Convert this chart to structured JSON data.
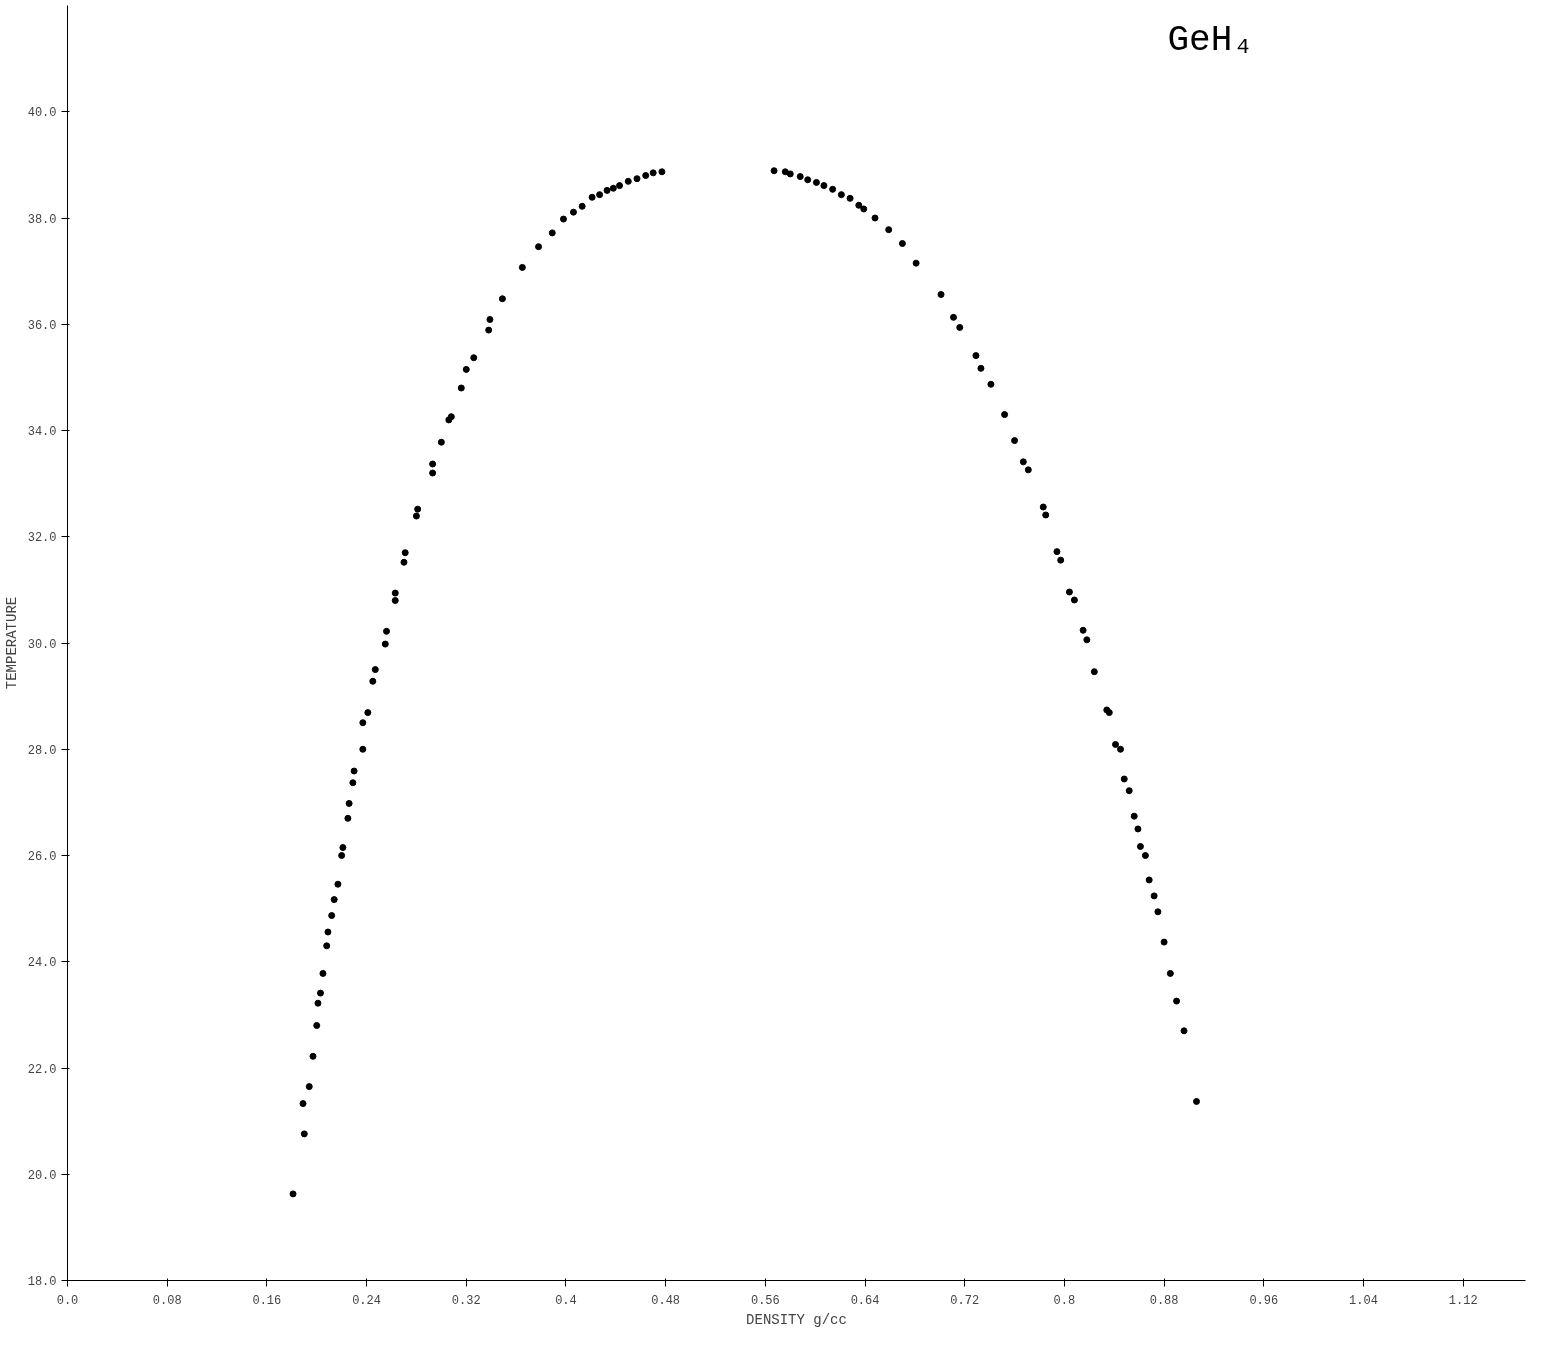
{
  "chart_data": {
    "type": "scatter",
    "title": "GeH₄",
    "xlabel": "DENSITY g/cc",
    "ylabel": "TEMPERATURE",
    "xlim": [
      0,
      1.17
    ],
    "ylim": [
      18,
      42
    ],
    "xticks": [
      {
        "value": 0,
        "label": "0.0"
      },
      {
        "value": 0.08,
        "label": "0.08"
      },
      {
        "value": 0.16,
        "label": "0.16"
      },
      {
        "value": 0.24,
        "label": "0.24"
      },
      {
        "value": 0.32,
        "label": "0.32"
      },
      {
        "value": 0.4,
        "label": "0.4"
      },
      {
        "value": 0.48,
        "label": "0.48"
      },
      {
        "value": 0.56,
        "label": "0.56"
      },
      {
        "value": 0.64,
        "label": "0.64"
      },
      {
        "value": 0.72,
        "label": "0.72"
      },
      {
        "value": 0.8,
        "label": "0.8"
      },
      {
        "value": 0.88,
        "label": "0.88"
      },
      {
        "value": 0.96,
        "label": "0.96"
      },
      {
        "value": 1.04,
        "label": "1.04"
      },
      {
        "value": 1.12,
        "label": "1.12"
      }
    ],
    "yticks": [
      {
        "value": 18,
        "label": "18.0"
      },
      {
        "value": 20,
        "label": "20.0"
      },
      {
        "value": 22,
        "label": "22.0"
      },
      {
        "value": 24,
        "label": "24.0"
      },
      {
        "value": 26,
        "label": "26.0"
      },
      {
        "value": 28,
        "label": "28.0"
      },
      {
        "value": 30,
        "label": "30.0"
      },
      {
        "value": 32,
        "label": "32.0"
      },
      {
        "value": 34,
        "label": "34.0"
      },
      {
        "value": 36,
        "label": "36.0"
      },
      {
        "value": 38,
        "label": "38.0"
      },
      {
        "value": 40,
        "label": "40.0"
      }
    ],
    "grid": false,
    "marker": "circle",
    "series": [
      {
        "color": "#000000",
        "x": [
          0.181,
          0.19,
          0.189,
          0.194,
          0.197,
          0.2,
          0.201,
          0.203,
          0.205,
          0.208,
          0.209,
          0.212,
          0.214,
          0.217,
          0.22,
          0.221,
          0.225,
          0.226,
          0.229,
          0.23,
          0.237,
          0.237,
          0.241,
          0.245,
          0.247,
          0.255,
          0.256,
          0.263,
          0.263,
          0.27,
          0.271,
          0.28,
          0.281,
          0.293,
          0.293,
          0.3,
          0.306,
          0.308,
          0.316,
          0.32,
          0.326,
          0.338,
          0.339,
          0.349,
          0.365,
          0.378,
          0.389,
          0.398,
          0.406,
          0.413,
          0.421,
          0.427,
          0.433,
          0.438,
          0.443,
          0.45,
          0.457,
          0.464,
          0.47,
          0.477,
          0.567,
          0.576,
          0.58,
          0.588,
          0.594,
          0.601,
          0.607,
          0.614,
          0.621,
          0.628,
          0.635,
          0.639,
          0.648,
          0.659,
          0.67,
          0.681,
          0.701,
          0.711,
          0.716,
          0.729,
          0.733,
          0.741,
          0.752,
          0.76,
          0.767,
          0.771,
          0.783,
          0.785,
          0.794,
          0.797,
          0.804,
          0.808,
          0.815,
          0.818,
          0.824,
          0.834,
          0.836,
          0.841,
          0.845,
          0.848,
          0.852,
          0.856,
          0.859,
          0.861,
          0.865,
          0.868,
          0.872,
          0.875,
          0.88,
          0.885,
          0.89,
          0.896,
          0.906
        ],
        "values": [
          19.63,
          20.76,
          21.33,
          21.65,
          22.22,
          22.8,
          23.22,
          23.41,
          23.78,
          24.3,
          24.56,
          24.87,
          25.17,
          25.46,
          26.0,
          26.15,
          26.7,
          26.98,
          27.37,
          27.59,
          28.0,
          28.5,
          28.69,
          29.28,
          29.5,
          29.98,
          30.22,
          30.8,
          30.94,
          31.52,
          31.7,
          32.39,
          32.52,
          33.2,
          33.37,
          33.78,
          34.2,
          34.26,
          34.8,
          35.15,
          35.37,
          35.89,
          36.09,
          36.48,
          37.07,
          37.46,
          37.72,
          37.98,
          38.11,
          38.22,
          38.39,
          38.44,
          38.52,
          38.56,
          38.61,
          38.69,
          38.74,
          38.8,
          38.85,
          38.87,
          38.89,
          38.87,
          38.83,
          38.78,
          38.72,
          38.67,
          38.61,
          38.54,
          38.44,
          38.37,
          38.24,
          38.17,
          38.0,
          37.78,
          37.52,
          37.15,
          36.56,
          36.13,
          35.94,
          35.41,
          35.17,
          34.87,
          34.3,
          33.81,
          33.41,
          33.26,
          32.56,
          32.41,
          31.72,
          31.56,
          30.96,
          30.81,
          30.24,
          30.06,
          29.46,
          28.74,
          28.69,
          28.09,
          28.0,
          27.44,
          27.22,
          26.74,
          26.5,
          26.17,
          26.0,
          25.54,
          25.24,
          24.94,
          24.37,
          23.78,
          23.26,
          22.7,
          21.37
        ]
      }
    ]
  }
}
